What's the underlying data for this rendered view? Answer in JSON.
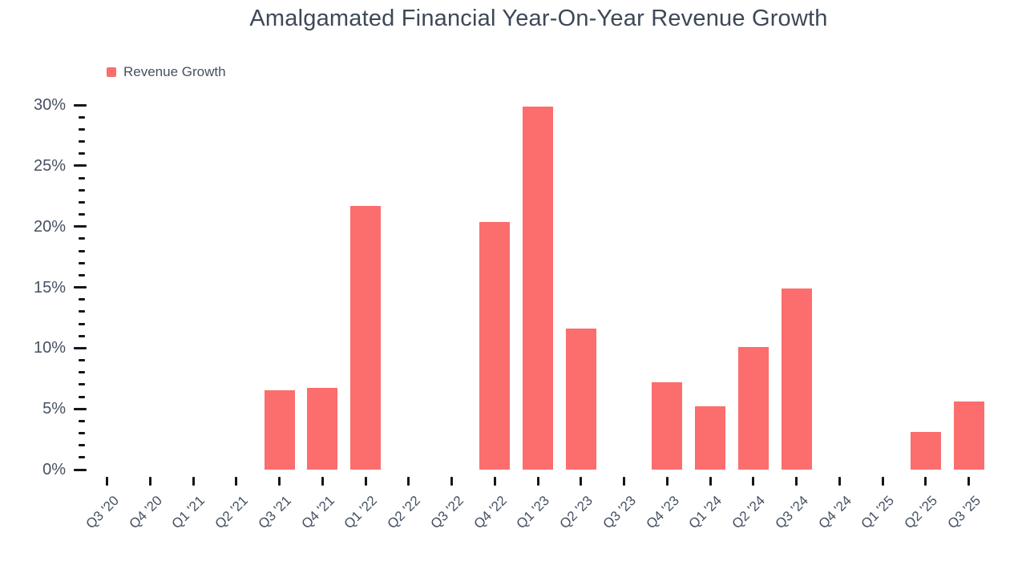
{
  "chart_data": {
    "type": "bar",
    "title": "Amalgamated Financial Year-On-Year Revenue Growth",
    "xlabel": "",
    "ylabel": "",
    "categories": [
      "Q3 '20",
      "Q4 '20",
      "Q1 '21",
      "Q2 '21",
      "Q3 '21",
      "Q4 '21",
      "Q1 '22",
      "Q2 '22",
      "Q3 '22",
      "Q4 '22",
      "Q1 '23",
      "Q2 '23",
      "Q3 '23",
      "Q4 '23",
      "Q1 '24",
      "Q2 '24",
      "Q3 '24",
      "Q4 '24",
      "Q1 '25",
      "Q2 '25",
      "Q3 '25"
    ],
    "series": [
      {
        "name": "Revenue Growth",
        "values": [
          null,
          null,
          null,
          null,
          6.5,
          6.7,
          21.7,
          null,
          null,
          20.4,
          29.9,
          11.6,
          null,
          7.2,
          5.2,
          10.1,
          14.9,
          null,
          null,
          3.1,
          5.6
        ]
      }
    ],
    "unit": "%",
    "ylim": [
      0,
      30
    ],
    "y_major_tick_step": 5,
    "y_minor_tick_step": 1,
    "y_tick_labels": [
      "0%",
      "5%",
      "10%",
      "15%",
      "20%",
      "25%",
      "30%"
    ],
    "grid": false,
    "legend_position": "top-left",
    "colors": {
      "bar": "#fc6d6d",
      "text": "#465062",
      "title": "#3e4856",
      "tick": "#14161a",
      "background": "#ffffff"
    }
  }
}
